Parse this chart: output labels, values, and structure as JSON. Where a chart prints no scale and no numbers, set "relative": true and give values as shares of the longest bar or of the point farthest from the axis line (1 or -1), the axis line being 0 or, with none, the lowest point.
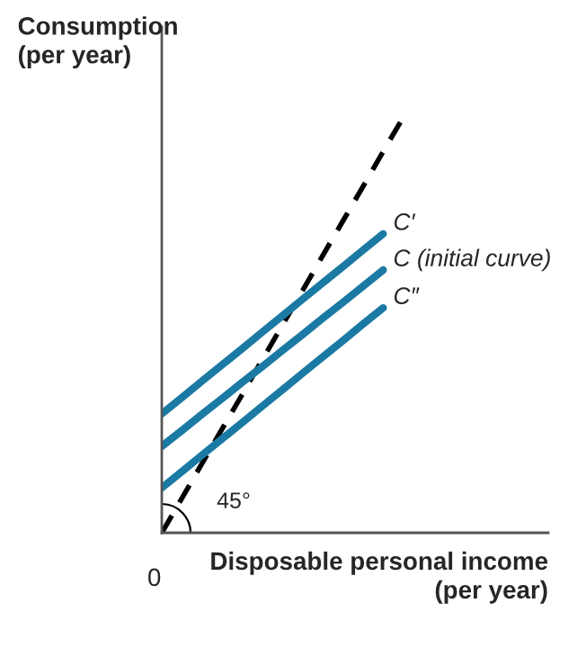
{
  "chart_data": {
    "type": "line",
    "relative": true,
    "xlabel": "Disposable personal income\n(per year)",
    "ylabel": "Consumption\n(per year)",
    "categories": [
      null,
      null,
      null,
      null,
      null,
      null,
      null,
      null,
      null,
      null,
      null,
      null,
      null
    ],
    "legend": false,
    "marker": "none",
    "series": [
      {
        "color": "#000000",
        "line_style": "dashed",
        "values": [
          0,
          0.083,
          0.167,
          0.25,
          0.333,
          0.417,
          0.5,
          0.583,
          0.667,
          0.75,
          0.833,
          0.917,
          1
        ]
      },
      {
        "name": "C′",
        "color": "#1b7aa3",
        "line_style": "solid",
        "values": [
          0.286,
          0.325,
          0.365,
          0.404,
          0.443,
          0.483,
          0.522,
          0.562,
          0.601,
          0.64,
          0.68,
          0.719,
          null
        ]
      },
      {
        "name": "C (initial curve)",
        "color": "#1b7aa3",
        "line_style": "solid",
        "values": [
          0.208,
          0.246,
          0.285,
          0.323,
          0.362,
          0.4,
          0.439,
          0.477,
          0.516,
          0.554,
          0.593,
          0.632,
          null
        ]
      },
      {
        "name": "C″",
        "color": "#1b7aa3",
        "line_style": "solid",
        "values": [
          0.108,
          0.147,
          0.187,
          0.226,
          0.265,
          0.305,
          0.344,
          0.384,
          0.423,
          0.462,
          0.502,
          0.541,
          null
        ]
      }
    ],
    "annotations": [
      "45°",
      "0"
    ]
  }
}
